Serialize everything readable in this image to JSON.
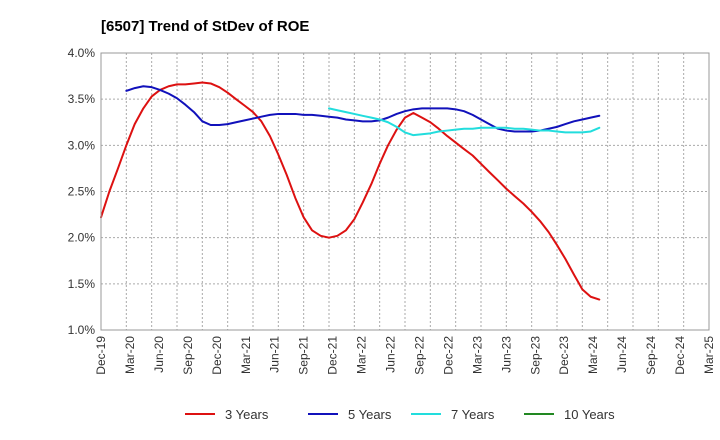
{
  "chart_data": {
    "type": "line",
    "title": "[6507]  Trend of StDev of ROE",
    "xlabel": "",
    "ylabel": "",
    "ylim": [
      1.0,
      4.0
    ],
    "yticks": [
      1.0,
      1.5,
      2.0,
      2.5,
      3.0,
      3.5,
      4.0
    ],
    "ytick_labels": [
      "1.0%",
      "1.5%",
      "2.0%",
      "2.5%",
      "3.0%",
      "3.5%",
      "4.0%"
    ],
    "xlim": [
      0,
      24
    ],
    "x_tick_labels": [
      "Dec-19",
      "Mar-20",
      "Jun-20",
      "Sep-20",
      "Dec-20",
      "Mar-21",
      "Jun-21",
      "Sep-21",
      "Dec-21",
      "Mar-22",
      "Jun-22",
      "Sep-22",
      "Dec-22",
      "Mar-23",
      "Jun-23",
      "Sep-23",
      "Dec-23",
      "Mar-24",
      "Jun-24",
      "Sep-24",
      "Dec-24",
      "Mar-25"
    ],
    "grid": "dashed",
    "legend_position": "bottom",
    "series": [
      {
        "name": "3 Years",
        "color": "#dd1111",
        "points": [
          [
            0,
            2.22
          ],
          [
            0.33,
            2.5
          ],
          [
            0.67,
            2.75
          ],
          [
            1,
            3.0
          ],
          [
            1.33,
            3.23
          ],
          [
            1.67,
            3.4
          ],
          [
            2,
            3.53
          ],
          [
            2.33,
            3.6
          ],
          [
            2.67,
            3.64
          ],
          [
            3,
            3.66
          ],
          [
            3.33,
            3.66
          ],
          [
            3.67,
            3.67
          ],
          [
            4,
            3.68
          ],
          [
            4.33,
            3.67
          ],
          [
            4.67,
            3.63
          ],
          [
            5,
            3.57
          ],
          [
            5.33,
            3.5
          ],
          [
            5.67,
            3.43
          ],
          [
            6,
            3.36
          ],
          [
            6.33,
            3.26
          ],
          [
            6.67,
            3.1
          ],
          [
            7,
            2.9
          ],
          [
            7.33,
            2.68
          ],
          [
            7.67,
            2.43
          ],
          [
            8,
            2.22
          ],
          [
            8.33,
            2.08
          ],
          [
            8.67,
            2.02
          ],
          [
            9,
            2.0
          ],
          [
            9.33,
            2.02
          ],
          [
            9.67,
            2.08
          ],
          [
            10,
            2.2
          ],
          [
            10.33,
            2.38
          ],
          [
            10.67,
            2.58
          ],
          [
            11,
            2.8
          ],
          [
            11.33,
            3.0
          ],
          [
            11.67,
            3.17
          ],
          [
            12,
            3.3
          ],
          [
            12.33,
            3.35
          ],
          [
            12.67,
            3.3
          ],
          [
            13,
            3.25
          ],
          [
            13.33,
            3.18
          ],
          [
            13.67,
            3.1
          ],
          [
            14,
            3.03
          ],
          [
            14.33,
            2.96
          ],
          [
            14.67,
            2.89
          ],
          [
            15,
            2.8
          ],
          [
            15.33,
            2.71
          ],
          [
            15.67,
            2.62
          ],
          [
            16,
            2.53
          ],
          [
            16.33,
            2.45
          ],
          [
            16.67,
            2.37
          ],
          [
            17,
            2.28
          ],
          [
            17.33,
            2.18
          ],
          [
            17.67,
            2.06
          ],
          [
            18,
            1.92
          ],
          [
            18.33,
            1.77
          ],
          [
            18.67,
            1.6
          ],
          [
            19,
            1.44
          ],
          [
            19.33,
            1.36
          ],
          [
            19.67,
            1.33
          ]
        ]
      },
      {
        "name": "5 Years",
        "color": "#1111bb",
        "points": [
          [
            1,
            3.59
          ],
          [
            1.33,
            3.62
          ],
          [
            1.67,
            3.64
          ],
          [
            2,
            3.63
          ],
          [
            2.33,
            3.6
          ],
          [
            2.67,
            3.56
          ],
          [
            3,
            3.51
          ],
          [
            3.33,
            3.44
          ],
          [
            3.67,
            3.36
          ],
          [
            4,
            3.26
          ],
          [
            4.33,
            3.22
          ],
          [
            4.67,
            3.22
          ],
          [
            5,
            3.23
          ],
          [
            5.33,
            3.25
          ],
          [
            5.67,
            3.27
          ],
          [
            6,
            3.29
          ],
          [
            6.33,
            3.31
          ],
          [
            6.67,
            3.33
          ],
          [
            7,
            3.34
          ],
          [
            7.33,
            3.34
          ],
          [
            7.67,
            3.34
          ],
          [
            8,
            3.33
          ],
          [
            8.33,
            3.33
          ],
          [
            8.67,
            3.32
          ],
          [
            9,
            3.31
          ],
          [
            9.33,
            3.3
          ],
          [
            9.67,
            3.28
          ],
          [
            10,
            3.27
          ],
          [
            10.33,
            3.26
          ],
          [
            10.67,
            3.26
          ],
          [
            11,
            3.27
          ],
          [
            11.33,
            3.3
          ],
          [
            11.67,
            3.34
          ],
          [
            12,
            3.37
          ],
          [
            12.33,
            3.39
          ],
          [
            12.67,
            3.4
          ],
          [
            13,
            3.4
          ],
          [
            13.33,
            3.4
          ],
          [
            13.67,
            3.4
          ],
          [
            14,
            3.39
          ],
          [
            14.33,
            3.37
          ],
          [
            14.67,
            3.33
          ],
          [
            15,
            3.28
          ],
          [
            15.33,
            3.23
          ],
          [
            15.67,
            3.18
          ],
          [
            16,
            3.16
          ],
          [
            16.33,
            3.15
          ],
          [
            16.67,
            3.15
          ],
          [
            17,
            3.15
          ],
          [
            17.33,
            3.16
          ],
          [
            17.67,
            3.18
          ],
          [
            18,
            3.2
          ],
          [
            18.33,
            3.23
          ],
          [
            18.67,
            3.26
          ],
          [
            19,
            3.28
          ],
          [
            19.33,
            3.3
          ],
          [
            19.67,
            3.32
          ]
        ]
      },
      {
        "name": "7 Years",
        "color": "#22dddd",
        "points": [
          [
            9,
            3.4
          ],
          [
            9.33,
            3.38
          ],
          [
            9.67,
            3.36
          ],
          [
            10,
            3.34
          ],
          [
            10.33,
            3.32
          ],
          [
            10.67,
            3.3
          ],
          [
            11,
            3.28
          ],
          [
            11.33,
            3.25
          ],
          [
            11.67,
            3.2
          ],
          [
            12,
            3.14
          ],
          [
            12.33,
            3.11
          ],
          [
            12.67,
            3.12
          ],
          [
            13,
            3.13
          ],
          [
            13.33,
            3.15
          ],
          [
            13.67,
            3.16
          ],
          [
            14,
            3.17
          ],
          [
            14.33,
            3.18
          ],
          [
            14.67,
            3.18
          ],
          [
            15,
            3.19
          ],
          [
            15.33,
            3.19
          ],
          [
            15.67,
            3.19
          ],
          [
            16,
            3.19
          ],
          [
            16.33,
            3.18
          ],
          [
            16.67,
            3.18
          ],
          [
            17,
            3.17
          ],
          [
            17.33,
            3.16
          ],
          [
            17.67,
            3.16
          ],
          [
            18,
            3.15
          ],
          [
            18.33,
            3.14
          ],
          [
            18.67,
            3.14
          ],
          [
            19,
            3.14
          ],
          [
            19.33,
            3.15
          ],
          [
            19.67,
            3.19
          ]
        ]
      },
      {
        "name": "10 Years",
        "color": "#228822",
        "points": []
      }
    ]
  }
}
